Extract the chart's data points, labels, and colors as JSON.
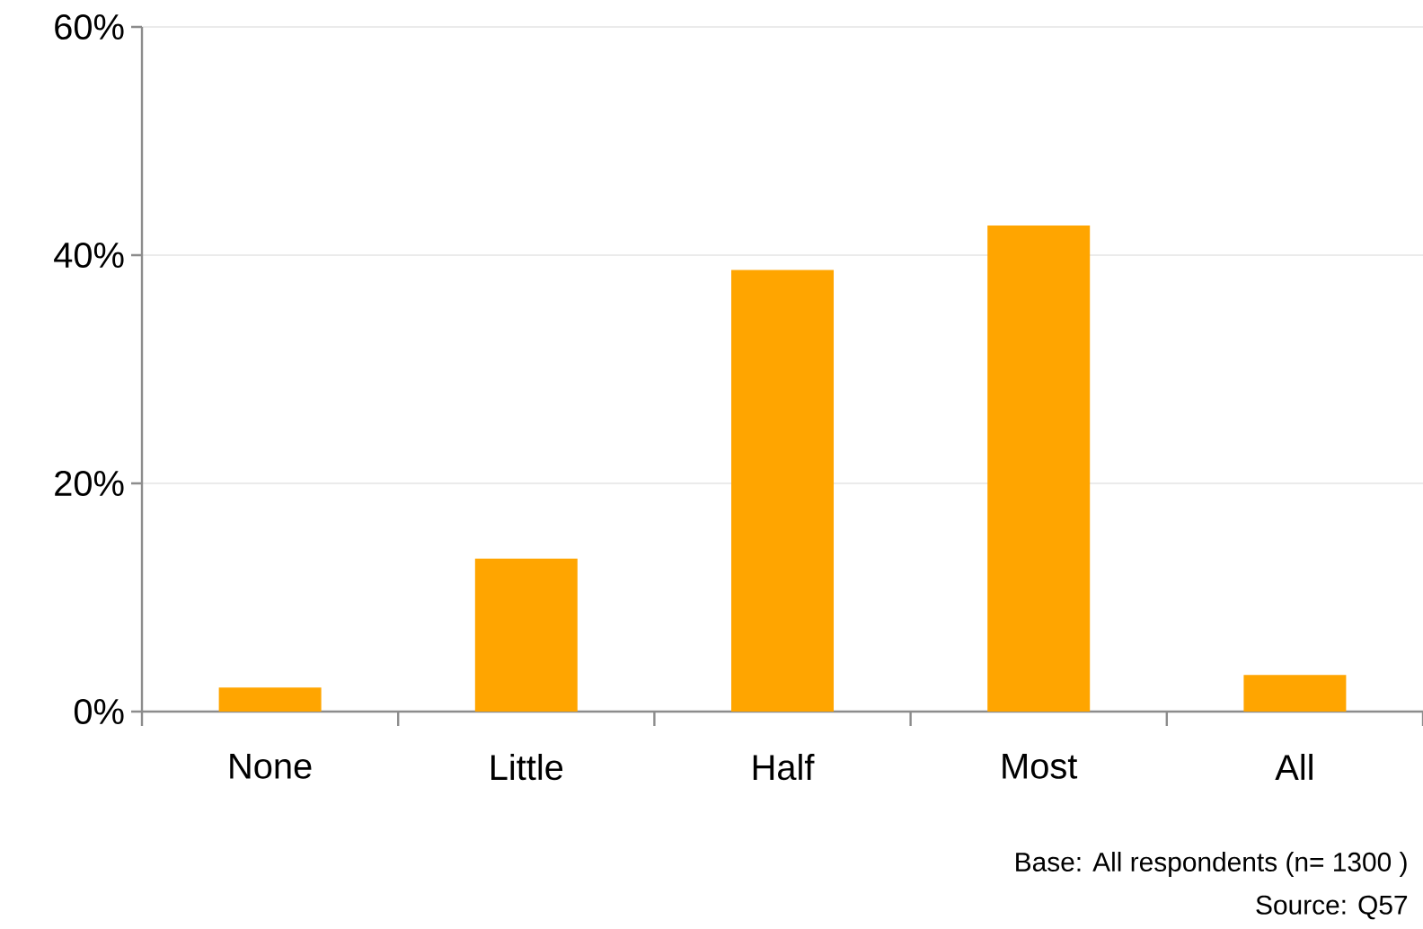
{
  "chart_data": {
    "type": "bar",
    "categories": [
      "None",
      "Little",
      "Half",
      "Most",
      "All"
    ],
    "values": [
      2.1,
      13.4,
      38.7,
      42.6,
      3.2
    ],
    "color": "#ffa500",
    "ylim": [
      0,
      60
    ],
    "yticks": [
      {
        "value": 0,
        "label": "0%"
      },
      {
        "value": 20,
        "label": "20%"
      },
      {
        "value": 40,
        "label": "40%"
      },
      {
        "value": 60,
        "label": "60%"
      }
    ],
    "grid": "y",
    "annotations": [
      "Base:  All respondents (n= 1300 )",
      "Source: Q57"
    ]
  }
}
